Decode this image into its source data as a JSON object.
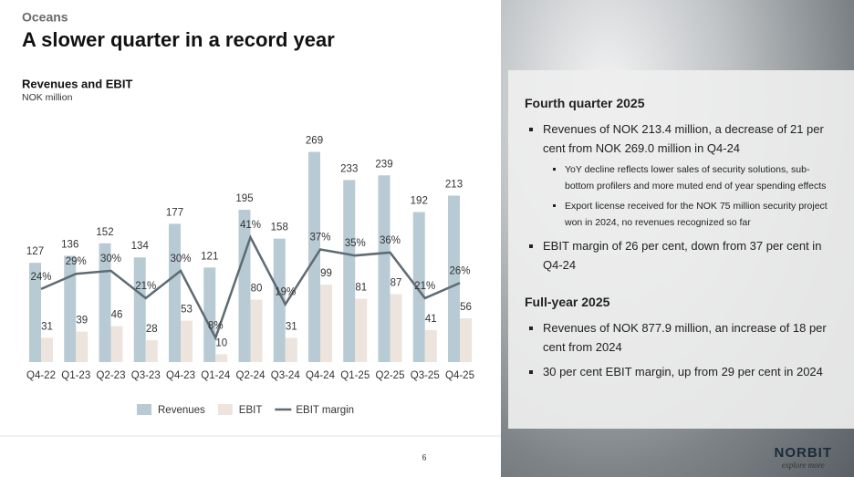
{
  "header": {
    "section": "Oceans",
    "title": "A slower quarter in a record year"
  },
  "chart_data": {
    "type": "bar-line",
    "title": "Revenues and EBIT",
    "subtitle": "NOK million",
    "categories": [
      "Q4-22",
      "Q1-23",
      "Q2-23",
      "Q3-23",
      "Q4-23",
      "Q1-24",
      "Q2-24",
      "Q3-24",
      "Q4-24",
      "Q1-25",
      "Q2-25",
      "Q3-25",
      "Q4-25"
    ],
    "series": [
      {
        "name": "Revenues",
        "color": "#b8cad4",
        "values": [
          127,
          136,
          152,
          134,
          177,
          121,
          195,
          158,
          269,
          233,
          239,
          192,
          213
        ]
      },
      {
        "name": "EBIT",
        "color": "#ece4dd",
        "values": [
          31,
          39,
          46,
          28,
          53,
          10,
          80,
          31,
          99,
          81,
          87,
          41,
          56
        ]
      },
      {
        "name": "EBIT margin",
        "color": "#5f6b73",
        "axis": "y2",
        "values": [
          24,
          29,
          30,
          21,
          30,
          8,
          41,
          19,
          37,
          35,
          36,
          21,
          26
        ],
        "value_labels": [
          "24%",
          "29%",
          "30%",
          "21%",
          "30%",
          "8%",
          "41%",
          "19%",
          "37%",
          "35%",
          "36%",
          "21%",
          "26%"
        ]
      }
    ],
    "ylim": [
      0,
      300
    ],
    "y2lim": [
      0,
      77
    ]
  },
  "panel": {
    "sections": [
      {
        "heading": "Fourth quarter 2025",
        "bullets": [
          {
            "text": "Revenues of NOK 213.4 million, a decrease of 21 per cent from NOK 269.0 million in Q4-24",
            "sub_bullets": [
              "YoY decline reflects lower sales of security solutions, sub-bottom profilers and more muted end of year spending effects",
              "Export license received for the NOK 75 million security project won in 2024, no revenues recognized so far"
            ]
          },
          {
            "text": "EBIT margin of 26 per cent, down from 37 per cent in Q4-24"
          }
        ]
      },
      {
        "heading": "Full-year 2025",
        "bullets": [
          {
            "text": "Revenues of NOK 877.9 million, an increase of 18 per cent from 2024"
          },
          {
            "text": "30 per cent EBIT margin, up from 29 per cent in 2024"
          }
        ]
      }
    ]
  },
  "footer": {
    "page": "6",
    "logo": "NORBIT",
    "tagline": "explore more"
  }
}
